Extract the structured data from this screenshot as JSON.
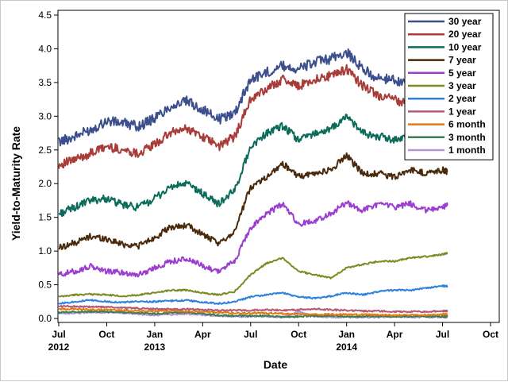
{
  "chart_data": {
    "type": "line",
    "title": "",
    "xlabel": "Date",
    "ylabel": "Yield-to-Maturity Rate",
    "ylim": [
      0,
      4.5
    ],
    "y_ticks": [
      "0.0",
      "0.5",
      "1.0",
      "1.5",
      "2.0",
      "2.5",
      "3.0",
      "3.5",
      "4.0",
      "4.5"
    ],
    "x_range_months": [
      0,
      27
    ],
    "x_ticks": [
      {
        "month": 0,
        "label": "Jul",
        "year": "2012"
      },
      {
        "month": 3,
        "label": "Oct",
        "year": ""
      },
      {
        "month": 6,
        "label": "Jan",
        "year": "2013"
      },
      {
        "month": 9,
        "label": "Apr",
        "year": ""
      },
      {
        "month": 12,
        "label": "Jul",
        "year": ""
      },
      {
        "month": 15,
        "label": "Oct",
        "year": ""
      },
      {
        "month": 18,
        "label": "Jan",
        "year": "2014"
      },
      {
        "month": 21,
        "label": "Apr",
        "year": ""
      },
      {
        "month": 24,
        "label": "Jul",
        "year": ""
      },
      {
        "month": 27,
        "label": "Oct",
        "year": ""
      }
    ],
    "x_months": [
      0,
      1,
      2,
      3,
      4,
      5,
      6,
      7,
      8,
      9,
      10,
      11,
      12,
      13,
      14,
      15,
      16,
      17,
      18,
      19,
      20,
      21,
      22,
      23,
      24,
      24.3
    ],
    "legend_position": "top-right",
    "series": [
      {
        "name": "30 year",
        "color": "#3c4f8c",
        "values": [
          2.62,
          2.7,
          2.8,
          2.93,
          2.9,
          2.85,
          2.97,
          3.15,
          3.22,
          3.1,
          2.95,
          3.05,
          3.55,
          3.65,
          3.75,
          3.7,
          3.8,
          3.85,
          3.95,
          3.7,
          3.55,
          3.55,
          3.45,
          3.4,
          3.35,
          3.33
        ]
      },
      {
        "name": "20 year",
        "color": "#a83c38",
        "values": [
          2.28,
          2.35,
          2.45,
          2.55,
          2.5,
          2.45,
          2.58,
          2.75,
          2.82,
          2.7,
          2.55,
          2.7,
          3.25,
          3.4,
          3.55,
          3.45,
          3.55,
          3.6,
          3.7,
          3.45,
          3.3,
          3.25,
          3.15,
          3.1,
          3.05,
          3.05
        ]
      },
      {
        "name": "10 year",
        "color": "#0c6b5a",
        "values": [
          1.55,
          1.65,
          1.75,
          1.78,
          1.68,
          1.65,
          1.78,
          1.95,
          2.0,
          1.85,
          1.7,
          1.9,
          2.55,
          2.75,
          2.85,
          2.65,
          2.75,
          2.8,
          3.0,
          2.75,
          2.7,
          2.65,
          2.7,
          2.6,
          2.55,
          2.57
        ]
      },
      {
        "name": "7 year",
        "color": "#4a2a0c",
        "values": [
          1.05,
          1.12,
          1.22,
          1.18,
          1.1,
          1.08,
          1.2,
          1.35,
          1.38,
          1.25,
          1.1,
          1.3,
          1.95,
          2.1,
          2.3,
          2.1,
          2.15,
          2.2,
          2.42,
          2.15,
          2.15,
          2.1,
          2.2,
          2.15,
          2.2,
          2.18
        ]
      },
      {
        "name": "5 year",
        "color": "#9b3fd1",
        "values": [
          0.65,
          0.7,
          0.77,
          0.7,
          0.68,
          0.65,
          0.75,
          0.85,
          0.88,
          0.78,
          0.7,
          0.85,
          1.35,
          1.55,
          1.7,
          1.4,
          1.45,
          1.55,
          1.72,
          1.6,
          1.7,
          1.65,
          1.7,
          1.6,
          1.65,
          1.68
        ]
      },
      {
        "name": "3 year",
        "color": "#7a8c21",
        "values": [
          0.32,
          0.35,
          0.36,
          0.35,
          0.33,
          0.35,
          0.38,
          0.42,
          0.42,
          0.38,
          0.35,
          0.4,
          0.65,
          0.82,
          0.9,
          0.7,
          0.65,
          0.6,
          0.75,
          0.8,
          0.85,
          0.85,
          0.9,
          0.92,
          0.95,
          0.97
        ]
      },
      {
        "name": "2 year",
        "color": "#2e82dc",
        "values": [
          0.22,
          0.25,
          0.27,
          0.25,
          0.24,
          0.25,
          0.25,
          0.26,
          0.27,
          0.24,
          0.22,
          0.25,
          0.32,
          0.35,
          0.38,
          0.32,
          0.3,
          0.33,
          0.38,
          0.35,
          0.4,
          0.42,
          0.42,
          0.45,
          0.48,
          0.48
        ]
      },
      {
        "name": "1 year",
        "color": "#b25a75",
        "values": [
          0.18,
          0.18,
          0.17,
          0.17,
          0.16,
          0.15,
          0.14,
          0.14,
          0.14,
          0.13,
          0.12,
          0.12,
          0.12,
          0.13,
          0.12,
          0.13,
          0.14,
          0.13,
          0.12,
          0.11,
          0.11,
          0.1,
          0.1,
          0.1,
          0.11,
          0.11
        ]
      },
      {
        "name": "6 month",
        "color": "#e07c12",
        "values": [
          0.14,
          0.14,
          0.13,
          0.13,
          0.12,
          0.11,
          0.11,
          0.11,
          0.11,
          0.1,
          0.09,
          0.08,
          0.08,
          0.08,
          0.07,
          0.06,
          0.06,
          0.06,
          0.06,
          0.06,
          0.05,
          0.05,
          0.05,
          0.05,
          0.06,
          0.06
        ]
      },
      {
        "name": "3 month",
        "color": "#3b7d52",
        "values": [
          0.09,
          0.1,
          0.1,
          0.1,
          0.09,
          0.08,
          0.07,
          0.08,
          0.09,
          0.07,
          0.05,
          0.04,
          0.04,
          0.04,
          0.02,
          0.03,
          0.04,
          0.04,
          0.03,
          0.03,
          0.03,
          0.03,
          0.03,
          0.03,
          0.03,
          0.03
        ]
      },
      {
        "name": "1 month",
        "color": "#b794d8",
        "values": [
          0.07,
          0.08,
          0.09,
          0.09,
          0.08,
          0.06,
          0.05,
          0.06,
          0.07,
          0.05,
          0.04,
          0.03,
          0.03,
          0.03,
          0.02,
          0.1,
          0.03,
          0.02,
          0.02,
          0.02,
          0.02,
          0.03,
          0.02,
          0.02,
          0.02,
          0.02
        ]
      }
    ]
  }
}
